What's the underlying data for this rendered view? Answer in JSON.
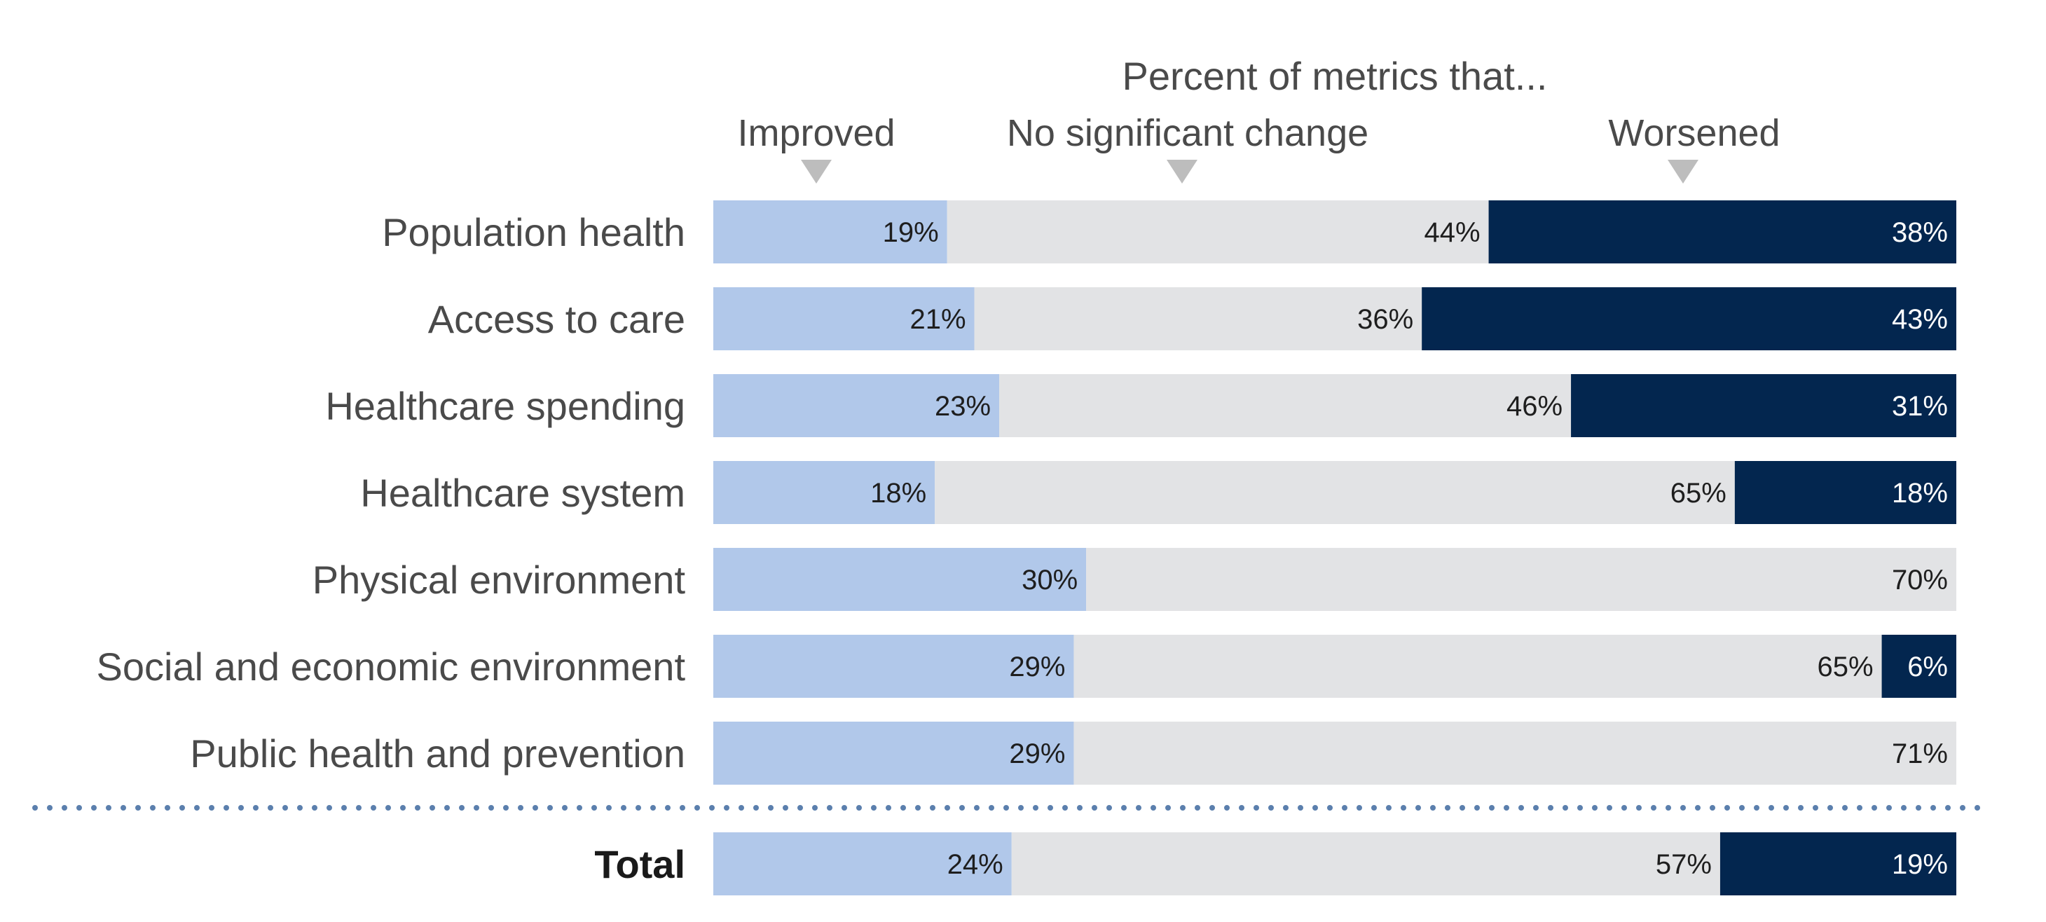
{
  "chart_data": {
    "type": "bar",
    "orientation": "horizontal",
    "stacked": true,
    "percent_stacked": true,
    "title": "Percent of metrics that...",
    "categories": [
      "Population health",
      "Access to care",
      "Healthcare spending",
      "Healthcare system",
      "Physical environment",
      "Social and economic environment",
      "Public health and prevention"
    ],
    "series": [
      {
        "name": "Improved",
        "values": [
          19,
          21,
          23,
          18,
          30,
          29,
          29
        ]
      },
      {
        "name": "No significant change",
        "values": [
          44,
          36,
          46,
          65,
          70,
          65,
          71
        ]
      },
      {
        "name": "Worsened",
        "values": [
          38,
          43,
          31,
          18,
          0,
          6,
          0
        ]
      }
    ],
    "total": {
      "label": "Total",
      "values": [
        24,
        57,
        19
      ]
    },
    "value_suffix": "%",
    "xlim": [
      0,
      100
    ],
    "colors": {
      "improved": "#b1c8ea",
      "no_change": "#e2e3e5",
      "worsened": "#03264f",
      "arrow": "#bdbdbd",
      "divider": "#5b7fad"
    },
    "legend_placement": "top"
  }
}
